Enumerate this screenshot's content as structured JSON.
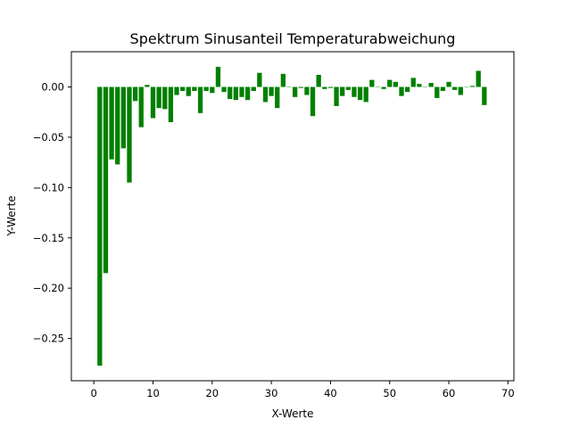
{
  "chart_data": {
    "type": "bar",
    "title": "Spektrum Sinusanteil Temperaturabweichung",
    "xlabel": "X-Werte",
    "ylabel": "Y-Werte",
    "xlim": [
      -3.8,
      71
    ],
    "ylim": [
      -0.292,
      0.035
    ],
    "xticks": [
      0,
      10,
      20,
      30,
      40,
      50,
      60,
      70
    ],
    "yticks": [
      0.0,
      -0.05,
      -0.1,
      -0.15,
      -0.2,
      -0.25
    ],
    "ytick_labels": [
      "0.00",
      "−0.05",
      "−0.10",
      "−0.15",
      "−0.20",
      "−0.25"
    ],
    "grid": false,
    "bar_color": "#008000",
    "bar_width": 0.8,
    "x": [
      1,
      2,
      3,
      4,
      5,
      6,
      7,
      8,
      9,
      10,
      11,
      12,
      13,
      14,
      15,
      16,
      17,
      18,
      19,
      20,
      21,
      22,
      23,
      24,
      25,
      26,
      27,
      28,
      29,
      30,
      31,
      32,
      33,
      34,
      35,
      36,
      37,
      38,
      39,
      40,
      41,
      42,
      43,
      44,
      45,
      46,
      47,
      48,
      49,
      50,
      51,
      52,
      53,
      54,
      55,
      56,
      57,
      58,
      59,
      60,
      61,
      62,
      63,
      64,
      65,
      66
    ],
    "values": [
      -0.277,
      -0.185,
      -0.072,
      -0.077,
      -0.061,
      -0.095,
      -0.014,
      -0.04,
      0.002,
      -0.031,
      -0.021,
      -0.022,
      -0.035,
      -0.008,
      -0.004,
      -0.009,
      -0.004,
      -0.026,
      -0.004,
      -0.006,
      0.02,
      -0.005,
      -0.012,
      -0.013,
      -0.01,
      -0.013,
      -0.004,
      0.014,
      -0.015,
      -0.009,
      -0.021,
      0.013,
      0.0,
      -0.01,
      -0.001,
      -0.008,
      -0.029,
      0.012,
      -0.002,
      -0.001,
      -0.019,
      -0.009,
      -0.003,
      -0.01,
      -0.013,
      -0.015,
      0.007,
      0.0,
      -0.002,
      0.007,
      0.005,
      -0.009,
      -0.005,
      0.009,
      0.003,
      0.0,
      0.004,
      -0.011,
      -0.004,
      0.005,
      -0.003,
      -0.008,
      0.0,
      0.001,
      0.016,
      -0.018
    ]
  }
}
